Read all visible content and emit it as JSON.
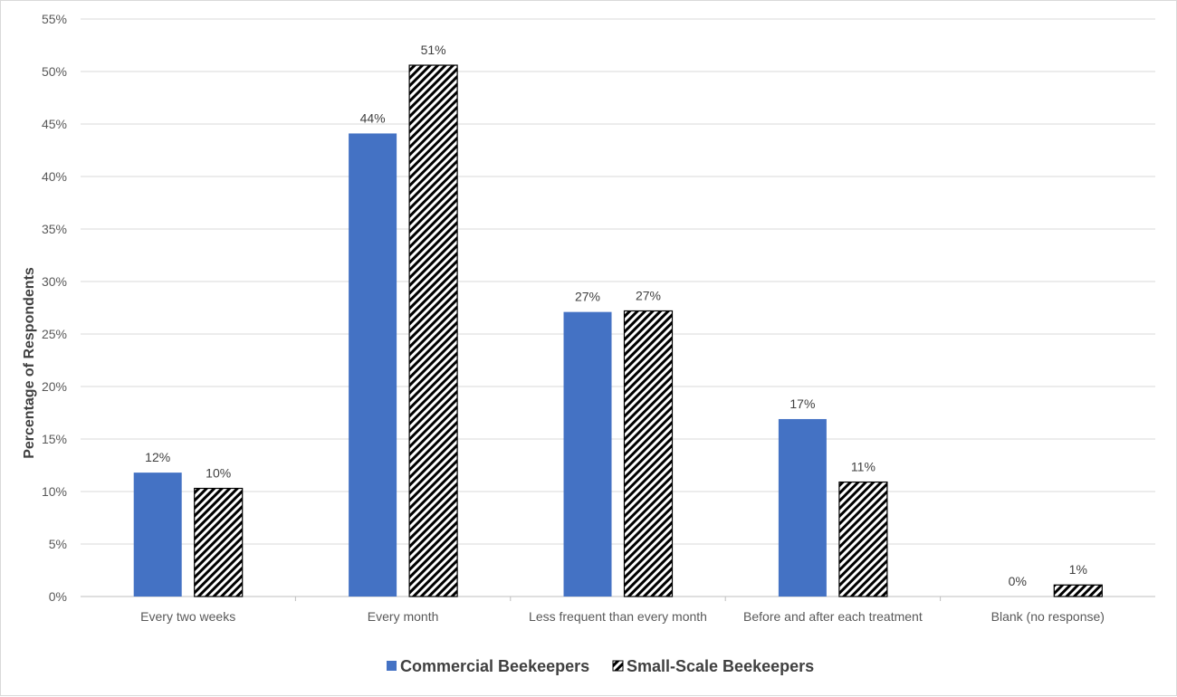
{
  "chart_data": {
    "type": "bar",
    "title": "",
    "xlabel": "",
    "ylabel": "Percentage of Respondents",
    "ylim": [
      0,
      55
    ],
    "y_tick_step": 5,
    "y_tick_format": "percent",
    "grid": true,
    "legend_position": "bottom",
    "categories": [
      "Every two weeks",
      "Every month",
      "Less frequent than every month",
      "Before and after each treatment",
      "Blank (no response)"
    ],
    "series": [
      {
        "name": "Commercial Beekeepers",
        "color": "#4472c4",
        "pattern": "solid",
        "values": [
          11.8,
          44.1,
          27.1,
          16.9,
          0
        ],
        "labels": [
          "12%",
          "44%",
          "27%",
          "17%",
          "0%"
        ]
      },
      {
        "name": "Small-Scale Beekeepers",
        "color": "#000000",
        "pattern": "diagonal-hatch",
        "values": [
          10.3,
          50.6,
          27.2,
          10.9,
          1.1
        ],
        "labels": [
          "10%",
          "51%",
          "27%",
          "11%",
          "1%"
        ]
      }
    ]
  }
}
